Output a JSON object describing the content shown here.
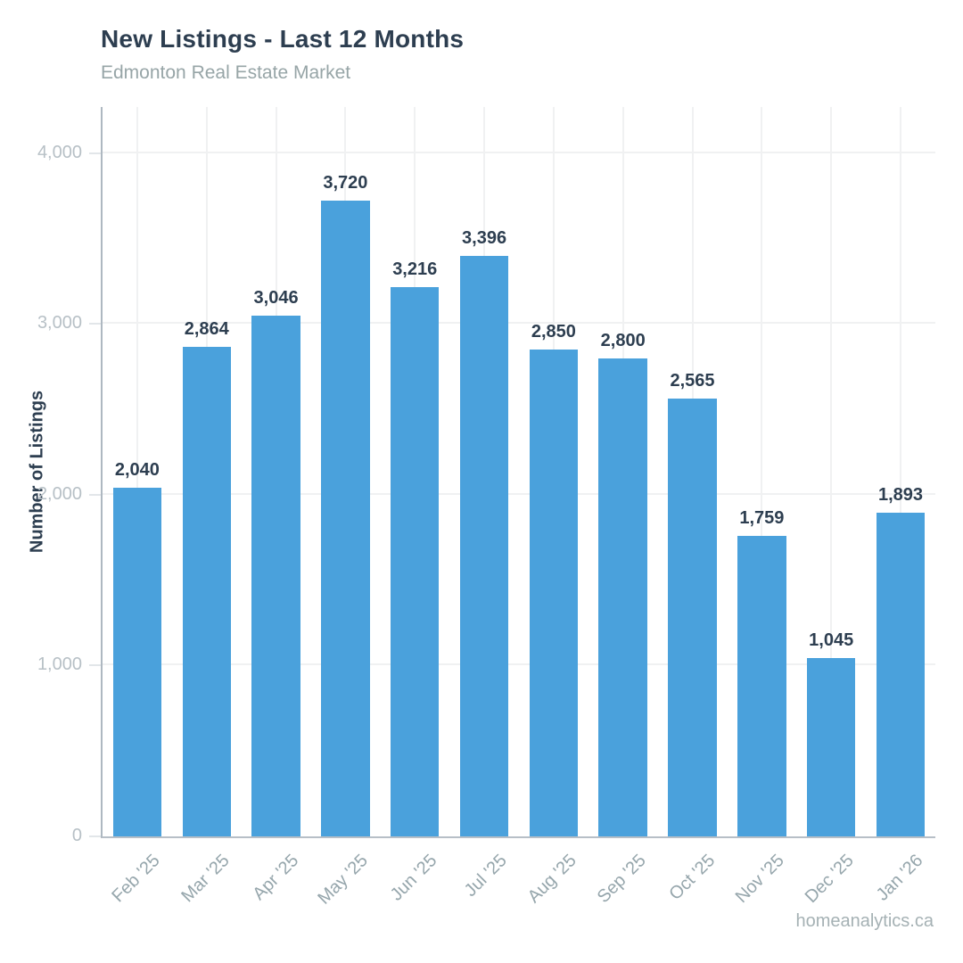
{
  "page": {
    "title": "New Listings - Last 12 Months",
    "subtitle": "Edmonton Real Estate Market",
    "footer": "homeanalytics.ca"
  },
  "chart_data": {
    "type": "bar",
    "title": "New Listings - Last 12 Months",
    "subtitle": "Edmonton Real Estate Market",
    "xlabel": "",
    "ylabel": "Number of Listings",
    "categories": [
      "Feb '25",
      "Mar '25",
      "Apr '25",
      "May '25",
      "Jun '25",
      "Jul '25",
      "Aug '25",
      "Sep '25",
      "Oct '25",
      "Nov '25",
      "Dec '25",
      "Jan '26"
    ],
    "values": [
      2040,
      2864,
      3046,
      3720,
      3216,
      3396,
      2850,
      2800,
      2565,
      1759,
      1045,
      1893
    ],
    "value_labels": [
      "2,040",
      "2,864",
      "3,046",
      "3,720",
      "3,216",
      "3,396",
      "2,850",
      "2,800",
      "2,565",
      "1,759",
      "1,045",
      "1,893"
    ],
    "yticks": [
      0,
      1000,
      2000,
      3000,
      4000
    ],
    "ytick_labels": [
      "0",
      "1,000",
      "2,000",
      "3,000",
      "4,000"
    ],
    "ylim": [
      0,
      4270
    ],
    "grid": true,
    "legend": false,
    "x_labels_rotated_degrees": -45,
    "colors": {
      "bar": "#4aa1dc",
      "title_text": "#2d3e50",
      "subtitle_text": "#97a5a7",
      "value_label_text": "#2d3e50",
      "y_tick_text": "#b7c0c6",
      "x_tick_text": "#96a6ac",
      "gridline": "#f0f1f2",
      "axis_line": "#b2bbc4"
    },
    "footer": "homeanalytics.ca"
  }
}
